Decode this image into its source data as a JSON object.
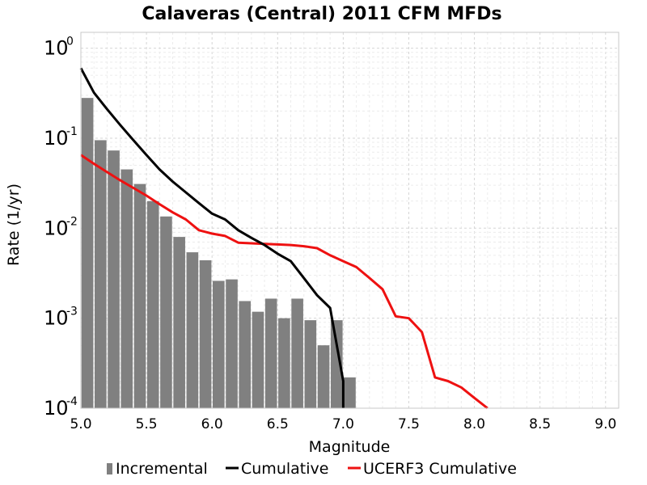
{
  "chart_data": {
    "type": "bar",
    "title": "Calaveras (Central) 2011 CFM MFDs",
    "xlabel": "Magnitude",
    "ylabel": "Rate (1/yr)",
    "xlim": [
      5.0,
      9.1
    ],
    "ylim": [
      0.0001,
      1.5
    ],
    "yscale": "log",
    "grid": true,
    "legend_position": "bottom",
    "x_ticks": [
      "5.0",
      "5.5",
      "6.0",
      "6.5",
      "7.0",
      "7.5",
      "8.0",
      "8.5",
      "9.0"
    ],
    "y_ticks": [
      {
        "base": "10",
        "exp": "0"
      },
      {
        "base": "10",
        "exp": "-1"
      },
      {
        "base": "10",
        "exp": "-2"
      },
      {
        "base": "10",
        "exp": "-3"
      },
      {
        "base": "10",
        "exp": "-4"
      }
    ],
    "series": [
      {
        "name": "Incremental",
        "type": "bar",
        "color": "#808080",
        "x": [
          5.05,
          5.15,
          5.25,
          5.35,
          5.45,
          5.55,
          5.65,
          5.75,
          5.85,
          5.95,
          6.05,
          6.15,
          6.25,
          6.35,
          6.45,
          6.55,
          6.65,
          6.75,
          6.85,
          6.95,
          7.05
        ],
        "values": [
          0.28,
          0.095,
          0.073,
          0.045,
          0.031,
          0.02,
          0.0135,
          0.008,
          0.0054,
          0.0044,
          0.0026,
          0.0027,
          0.00155,
          0.00118,
          0.00165,
          0.001,
          0.00165,
          0.00095,
          0.0005,
          0.00095,
          0.00022
        ]
      },
      {
        "name": "Cumulative",
        "type": "line",
        "color": "#000000",
        "x": [
          5.0,
          5.1,
          5.2,
          5.3,
          5.4,
          5.5,
          5.6,
          5.7,
          5.8,
          5.9,
          6.0,
          6.1,
          6.2,
          6.3,
          6.4,
          6.5,
          6.6,
          6.7,
          6.8,
          6.9,
          7.0,
          7.0
        ],
        "values": [
          0.6,
          0.32,
          0.21,
          0.14,
          0.095,
          0.065,
          0.045,
          0.033,
          0.025,
          0.019,
          0.0145,
          0.0125,
          0.0095,
          0.0078,
          0.0065,
          0.0052,
          0.0043,
          0.0028,
          0.0018,
          0.0013,
          0.0002,
          0.0001
        ]
      },
      {
        "name": "UCERF3 Cumulative",
        "type": "line",
        "color": "#ee1111",
        "x": [
          5.0,
          5.1,
          5.2,
          5.3,
          5.4,
          5.5,
          5.6,
          5.7,
          5.8,
          5.9,
          6.0,
          6.1,
          6.2,
          6.3,
          6.4,
          6.5,
          6.6,
          6.7,
          6.8,
          6.9,
          7.0,
          7.1,
          7.2,
          7.3,
          7.4,
          7.5,
          7.6,
          7.7,
          7.8,
          7.9,
          8.0,
          8.1
        ],
        "values": [
          0.065,
          0.052,
          0.042,
          0.034,
          0.028,
          0.023,
          0.0185,
          0.015,
          0.0125,
          0.0095,
          0.0087,
          0.0082,
          0.0069,
          0.0068,
          0.0067,
          0.0066,
          0.0065,
          0.0063,
          0.006,
          0.005,
          0.0043,
          0.0037,
          0.0028,
          0.0021,
          0.00105,
          0.001,
          0.0007,
          0.00022,
          0.0002,
          0.00017,
          0.00013,
          0.0001
        ]
      }
    ]
  }
}
